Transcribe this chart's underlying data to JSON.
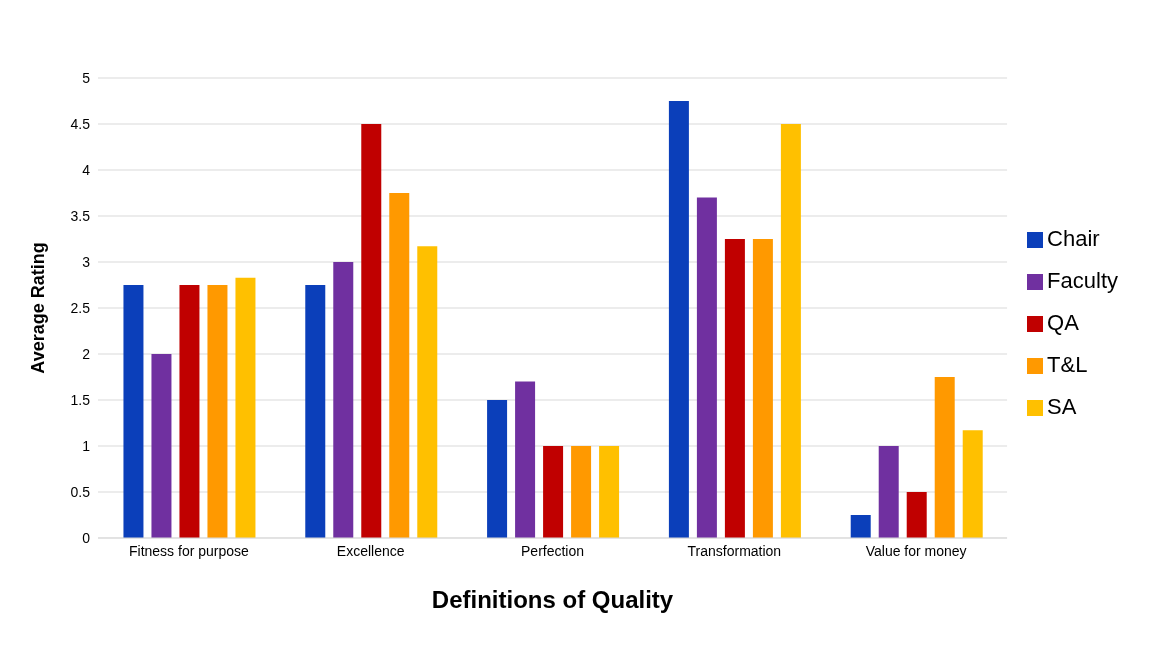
{
  "chart_data": {
    "type": "bar",
    "xlabel": "Definitions of Quality",
    "ylabel": "Average Rating",
    "categories": [
      "Fitness for purpose",
      "Excellence",
      "Perfection",
      "Transformation",
      "Value for money"
    ],
    "series": [
      {
        "name": "Chair",
        "color": "#0b3fba",
        "values": [
          2.75,
          2.75,
          1.5,
          4.75,
          0.25
        ]
      },
      {
        "name": "Faculty",
        "color": "#7030a0",
        "values": [
          2,
          3,
          1.7,
          3.7,
          1
        ]
      },
      {
        "name": "QA",
        "color": "#c00000",
        "values": [
          2.75,
          4.5,
          1,
          3.25,
          0.5
        ]
      },
      {
        "name": "T&L",
        "color": "#ff9900",
        "values": [
          2.75,
          3.75,
          1,
          3.25,
          1.75
        ]
      },
      {
        "name": "SA",
        "color": "#ffc000",
        "values": [
          2.83,
          3.17,
          1,
          4.5,
          1.17
        ]
      }
    ],
    "ylim": [
      0,
      5
    ],
    "yticks": [
      0,
      0.5,
      1,
      1.5,
      2,
      2.5,
      3,
      3.5,
      4,
      4.5,
      5
    ],
    "grid": "y",
    "legend": "right"
  }
}
